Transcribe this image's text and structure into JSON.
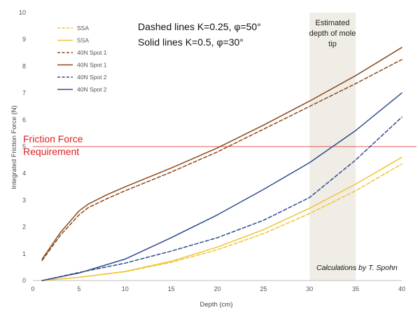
{
  "chart_data": {
    "type": "line",
    "title": "",
    "xlabel": "Depth (cm)",
    "ylabel": "Integrated Friction Force (N)",
    "xlim": [
      0,
      40
    ],
    "ylim": [
      0,
      10
    ],
    "x_ticks": [
      0,
      5,
      10,
      15,
      20,
      25,
      30,
      35,
      40
    ],
    "y_ticks": [
      0,
      1,
      2,
      3,
      4,
      5,
      6,
      7,
      8,
      9,
      10
    ],
    "grid": false,
    "legend_position": "top-left",
    "colors": {
      "ssa": "#f0c431",
      "spot1": "#8b4a1c",
      "spot2": "#2e4a8e",
      "requirement": "#e02020",
      "band": "#f0ede6"
    },
    "series": [
      {
        "name": "SSA",
        "style": "dashed",
        "color": "#f0c431",
        "x": [
          1,
          5,
          10,
          15,
          20,
          25,
          30,
          35,
          40
        ],
        "y": [
          0.0,
          0.12,
          0.33,
          0.68,
          1.15,
          1.75,
          2.5,
          3.35,
          4.35
        ]
      },
      {
        "name": "SSA",
        "style": "solid",
        "color": "#f0c431",
        "x": [
          1,
          5,
          10,
          15,
          20,
          25,
          30,
          35,
          40
        ],
        "y": [
          0.0,
          0.12,
          0.34,
          0.72,
          1.25,
          1.9,
          2.7,
          3.6,
          4.6
        ]
      },
      {
        "name": "40N Spot 1",
        "style": "dashed",
        "color": "#8b4a1c",
        "x": [
          1,
          3,
          5,
          6,
          8,
          10,
          15,
          20,
          25,
          30,
          35,
          40
        ],
        "y": [
          0.75,
          1.7,
          2.45,
          2.72,
          3.05,
          3.35,
          4.05,
          4.8,
          5.65,
          6.5,
          7.35,
          8.25
        ]
      },
      {
        "name": "40N Spot 1",
        "style": "solid",
        "color": "#8b4a1c",
        "x": [
          1,
          3,
          5,
          6,
          8,
          10,
          15,
          20,
          25,
          30,
          35,
          40
        ],
        "y": [
          0.8,
          1.8,
          2.6,
          2.85,
          3.2,
          3.5,
          4.2,
          4.95,
          5.8,
          6.7,
          7.65,
          8.7
        ]
      },
      {
        "name": "40N Spot 2",
        "style": "dashed",
        "color": "#2e4a8e",
        "x": [
          1,
          5,
          10,
          15,
          20,
          25,
          30,
          35,
          40
        ],
        "y": [
          0.0,
          0.3,
          0.65,
          1.1,
          1.6,
          2.25,
          3.1,
          4.5,
          6.1
        ]
      },
      {
        "name": "40N Spot 2",
        "style": "solid",
        "color": "#2e4a8e",
        "x": [
          1,
          5,
          10,
          15,
          20,
          25,
          30,
          35,
          40
        ],
        "y": [
          0.0,
          0.28,
          0.8,
          1.6,
          2.45,
          3.4,
          4.4,
          5.6,
          7.0
        ]
      }
    ],
    "reference_line": {
      "y": 5,
      "label_lines": [
        "Friction Force",
        "Requirement"
      ]
    },
    "shaded_band": {
      "x_range": [
        30,
        35
      ],
      "label_lines": [
        "Estimated",
        "depth of mole",
        "tip"
      ]
    },
    "annotations": {
      "dashed_note": "Dashed lines K=0.25, φ=50°",
      "solid_note": "Solid lines K=0.5, φ=30°",
      "credit": "Calculations by T. Spohn"
    }
  }
}
